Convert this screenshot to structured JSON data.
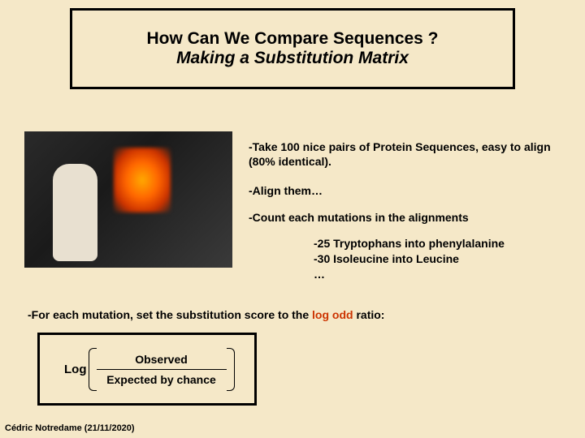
{
  "title": {
    "line1": "How Can We Compare Sequences ?",
    "line2": "Making a Substitution Matrix"
  },
  "bullets": {
    "b1": "-Take 100 nice pairs of Protein Sequences, easy to align (80% identical).",
    "b2": "-Align them…",
    "b3": "-Count each mutations in the alignments",
    "sub1": "-25 Tryptophans into phenylalanine",
    "sub2": "-30 Isoleucine into Leucine",
    "sub3": "…"
  },
  "for_each": {
    "prefix": "-For each mutation, set the substitution score to the ",
    "highlight": "log odd",
    "suffix": " ratio:"
  },
  "formula": {
    "log": "Log",
    "top": "Observed",
    "bottom": "Expected by chance"
  },
  "footer": "Cédric Notredame (21/11/2020)",
  "colors": {
    "background": "#f5e8c8",
    "text": "#000000",
    "accent": "#cc3300",
    "border": "#000000"
  }
}
